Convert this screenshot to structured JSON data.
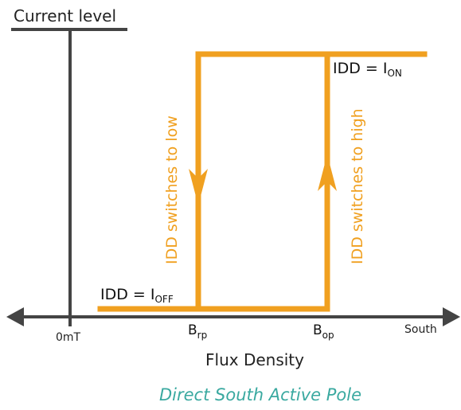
{
  "diagram": {
    "y_axis_label": "Current level",
    "x_axis_label": "Flux Density",
    "origin_label": "0mT",
    "south_label": "South",
    "brp_label": {
      "main": "B",
      "sub": "rp"
    },
    "bop_label": {
      "main": "B",
      "sub": "op"
    },
    "ion_label": {
      "prefix": "IDD = I",
      "sub": "ON"
    },
    "ioff_label": {
      "prefix": "IDD = I",
      "sub": "OFF"
    },
    "switch_low_label": "IDD switches to low",
    "switch_high_label": "IDD switches to high",
    "caption": "Direct South Active Pole"
  },
  "colors": {
    "axis": "#444444",
    "curve": "#f0a020",
    "caption": "#3aa9a0"
  }
}
